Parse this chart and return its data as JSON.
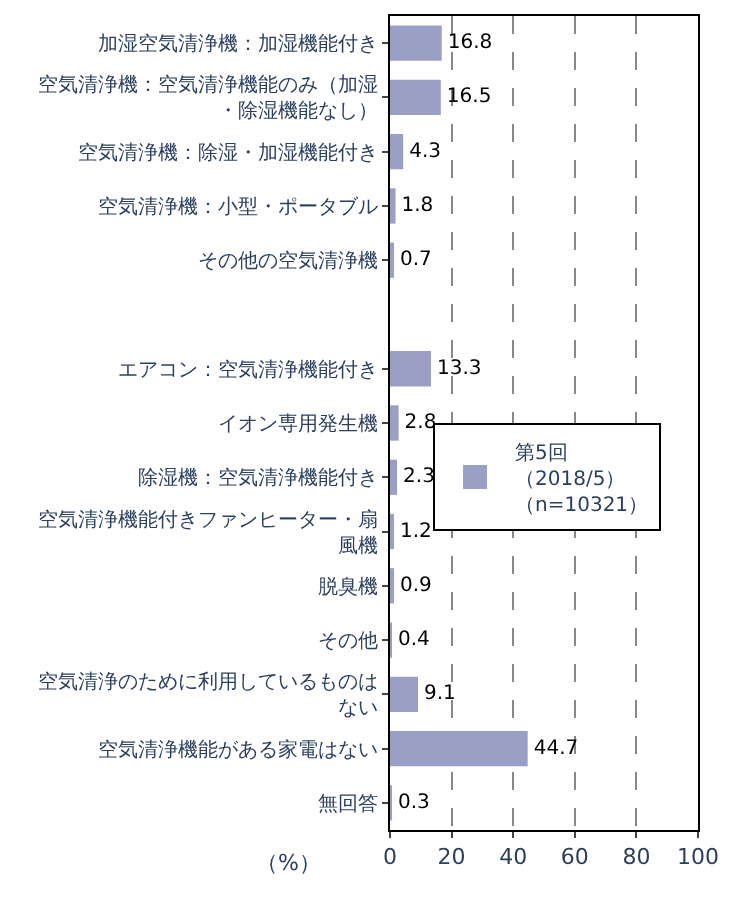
{
  "chart_data": {
    "type": "bar",
    "orientation": "horizontal",
    "categories": [
      "加湿空気清浄機：加湿機能付き",
      "空気清浄機：空気清浄機能のみ（加湿・除湿機能なし）",
      "空気清浄機：除湿・加湿機能付き",
      "空気清浄機：小型・ポータブル",
      "その他の空気清浄機",
      null,
      "エアコン：空気清浄機能付き",
      "イオン専用発生機",
      "除湿機：空気清浄機能付き",
      "空気清浄機能付きファンヒーター・扇風機",
      "脱臭機",
      "その他",
      "空気清浄のために利用しているものはない",
      "空気清浄機能がある家電はない",
      "無回答"
    ],
    "series": [
      {
        "name": "第5回（2018/5）（n=10321）",
        "color": "#9aa0c4",
        "values": [
          16.8,
          16.5,
          4.3,
          1.8,
          0.7,
          null,
          13.3,
          2.8,
          2.3,
          1.2,
          0.9,
          0.4,
          9.1,
          44.7,
          0.3
        ]
      }
    ],
    "xlabel": "（%）",
    "xlim": [
      0,
      100
    ],
    "xticks": [
      0,
      20,
      40,
      60,
      80,
      100
    ],
    "grid": "x",
    "legend": "right",
    "data_labels": true
  }
}
